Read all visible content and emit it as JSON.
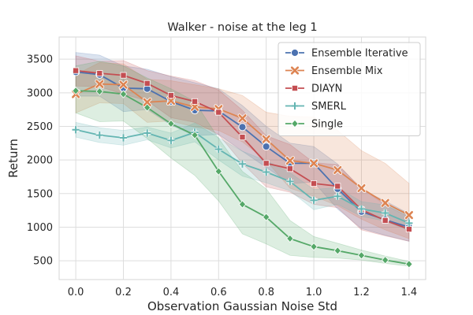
{
  "chart_data": {
    "type": "line",
    "title": "Walker - noise at the leg 1",
    "xlabel": "Observation Gaussian Noise Std",
    "ylabel": "Return",
    "xlim": [
      -0.07,
      1.47
    ],
    "ylim": [
      220,
      3830
    ],
    "xticks": [
      "0.0",
      "0.2",
      "0.4",
      "0.6",
      "0.8",
      "1.0",
      "1.2",
      "1.4"
    ],
    "xtick_values": [
      0.0,
      0.2,
      0.4,
      0.6,
      0.8,
      1.0,
      1.2,
      1.4
    ],
    "yticks": [
      "500",
      "1000",
      "1500",
      "2000",
      "2500",
      "3000",
      "3500"
    ],
    "ytick_values": [
      500,
      1000,
      1500,
      2000,
      2500,
      3000,
      3500
    ],
    "grid": true,
    "legend_position": "top-right",
    "x": [
      0.0,
      0.1,
      0.2,
      0.3,
      0.4,
      0.5,
      0.6,
      0.7,
      0.8,
      0.9,
      1.0,
      1.1,
      1.2,
      1.3,
      1.4
    ],
    "series": [
      {
        "name": "Ensemble Iterative",
        "color": "#4c72b0",
        "marker": "circle",
        "values": [
          3310,
          3270,
          3070,
          3060,
          2870,
          2740,
          2730,
          2490,
          2200,
          1950,
          1950,
          1570,
          1230,
          1110,
          1000
        ],
        "upper": [
          3600,
          3560,
          3400,
          3350,
          3240,
          3150,
          3060,
          2810,
          2500,
          2250,
          2200,
          1940,
          1560,
          1390,
          1200
        ],
        "lower": [
          2950,
          2950,
          2720,
          2750,
          2520,
          2360,
          2380,
          2130,
          1890,
          1650,
          1670,
          1270,
          980,
          880,
          790
        ]
      },
      {
        "name": "Ensemble Mix",
        "color": "#dd8452",
        "marker": "x",
        "values": [
          2980,
          3130,
          3120,
          2860,
          2880,
          2790,
          2760,
          2620,
          2310,
          1990,
          1950,
          1850,
          1580,
          1360,
          1180
        ],
        "upper": [
          3270,
          3450,
          3430,
          3200,
          3180,
          3120,
          3060,
          2960,
          2710,
          2650,
          2640,
          2440,
          2140,
          1950,
          1650
        ],
        "lower": [
          2700,
          2850,
          2840,
          2560,
          2580,
          2490,
          2440,
          2270,
          1990,
          1580,
          1460,
          1320,
          1120,
          960,
          830
        ]
      },
      {
        "name": "DIAYN",
        "color": "#c44e52",
        "marker": "square",
        "values": [
          3330,
          3290,
          3260,
          3140,
          2960,
          2870,
          2710,
          2340,
          1950,
          1870,
          1650,
          1610,
          1260,
          1100,
          970
        ],
        "upper": [
          3550,
          3470,
          3480,
          3330,
          3250,
          3180,
          3040,
          2740,
          2360,
          2230,
          1960,
          1930,
          1580,
          1330,
          1150
        ],
        "lower": [
          3100,
          3090,
          2980,
          2880,
          2630,
          2560,
          2380,
          1950,
          1600,
          1520,
          1340,
          1290,
          960,
          870,
          790
        ]
      },
      {
        "name": "SMERL",
        "color": "#64b5b2",
        "marker": "plus",
        "values": [
          2450,
          2370,
          2330,
          2400,
          2290,
          2410,
          2160,
          1940,
          1820,
          1680,
          1400,
          1460,
          1270,
          1210,
          1060
        ],
        "upper": [
          2560,
          2480,
          2440,
          2490,
          2400,
          2550,
          2330,
          2130,
          1990,
          1810,
          1560,
          1590,
          1380,
          1330,
          1180
        ],
        "lower": [
          2340,
          2260,
          2220,
          2300,
          2180,
          2270,
          2000,
          1760,
          1660,
          1540,
          1260,
          1340,
          1160,
          1090,
          950
        ]
      },
      {
        "name": "Single",
        "color": "#55a868",
        "marker": "diamond",
        "values": [
          3030,
          3020,
          2980,
          2780,
          2540,
          2370,
          1830,
          1340,
          1150,
          830,
          710,
          650,
          580,
          510,
          450
        ],
        "upper": [
          3400,
          3470,
          3400,
          3220,
          3060,
          2870,
          2320,
          1830,
          1570,
          1100,
          860,
          760,
          660,
          570,
          490
        ],
        "lower": [
          2700,
          2570,
          2580,
          2320,
          2030,
          1770,
          1390,
          900,
          750,
          580,
          550,
          540,
          510,
          460,
          420
        ]
      }
    ]
  }
}
